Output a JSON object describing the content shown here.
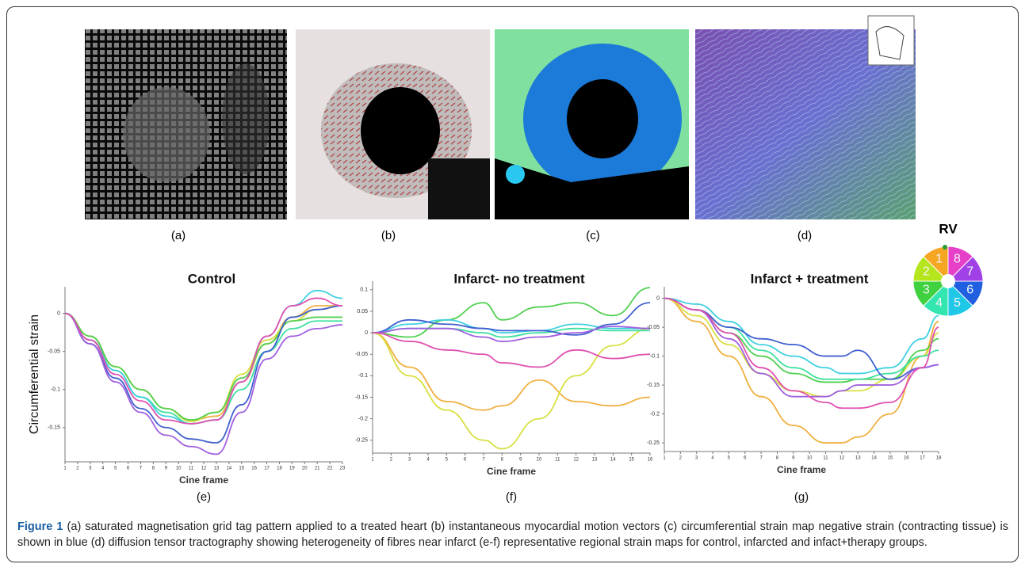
{
  "figure": {
    "panels": [
      "(a)",
      "(b)",
      "(c)",
      "(d)"
    ],
    "segment_legend": {
      "title": "RV",
      "labels": [
        "1",
        "2",
        "3",
        "4",
        "5",
        "6",
        "7",
        "8"
      ],
      "colors": [
        "#f5a623",
        "#b5e61d",
        "#3fd13f",
        "#33e6b0",
        "#1ec8e6",
        "#1f5fe0",
        "#a040e6",
        "#e640c8"
      ]
    },
    "caption": {
      "label": "Figure 1",
      "text": "(a) saturated magnetisation grid tag pattern applied to a treated heart (b) instantaneous myocardial motion vectors (c) circumferential strain map negative strain (contracting tissue) is shown in blue (d) diffusion tensor tractography showing heterogeneity of fibres near infarct (e-f) representative regional strain maps for control, infarcted and infact+therapy groups."
    }
  },
  "chart_data": [
    {
      "type": "line",
      "title": "Control",
      "x_label": "Cine frame",
      "y_label": "Circumferential strain",
      "panel_label": "(e)",
      "x": [
        1,
        3,
        5,
        7,
        9,
        11,
        13,
        15,
        17,
        19,
        21,
        23
      ],
      "xlim": [
        1,
        23
      ],
      "xticks": [
        1,
        2,
        3,
        4,
        5,
        6,
        7,
        8,
        9,
        10,
        11,
        12,
        13,
        14,
        15,
        16,
        17,
        18,
        19,
        20,
        21,
        22,
        23
      ],
      "ylim": [
        -0.195,
        0.035
      ],
      "yticks": [
        0,
        -0.05,
        -0.1,
        -0.15
      ],
      "series": [
        {
          "color": "#f0b040",
          "values": [
            0,
            -0.03,
            -0.07,
            -0.1,
            -0.125,
            -0.14,
            -0.135,
            -0.09,
            -0.04,
            -0.005,
            0.01,
            0.01
          ]
        },
        {
          "color": "#d8e040",
          "values": [
            0,
            -0.03,
            -0.07,
            -0.1,
            -0.125,
            -0.142,
            -0.13,
            -0.08,
            -0.035,
            -0.01,
            0.005,
            0.01
          ]
        },
        {
          "color": "#50d050",
          "values": [
            0,
            -0.03,
            -0.07,
            -0.1,
            -0.125,
            -0.14,
            -0.13,
            -0.085,
            -0.04,
            -0.01,
            -0.005,
            -0.005
          ]
        },
        {
          "color": "#40e0a0",
          "values": [
            0,
            -0.035,
            -0.075,
            -0.11,
            -0.13,
            -0.145,
            -0.14,
            -0.1,
            -0.05,
            -0.02,
            -0.01,
            -0.01
          ]
        },
        {
          "color": "#40d0e0",
          "values": [
            0,
            -0.035,
            -0.075,
            -0.11,
            -0.135,
            -0.145,
            -0.14,
            -0.09,
            -0.03,
            0.01,
            0.03,
            0.02
          ]
        },
        {
          "color": "#4060d0",
          "values": [
            0,
            -0.04,
            -0.085,
            -0.125,
            -0.15,
            -0.165,
            -0.17,
            -0.12,
            -0.05,
            -0.005,
            0.005,
            0.01
          ]
        },
        {
          "color": "#a060e0",
          "values": [
            0,
            -0.04,
            -0.09,
            -0.13,
            -0.16,
            -0.175,
            -0.185,
            -0.13,
            -0.06,
            -0.03,
            -0.02,
            -0.015
          ]
        },
        {
          "color": "#e050b0",
          "values": [
            0,
            -0.035,
            -0.08,
            -0.115,
            -0.14,
            -0.145,
            -0.14,
            -0.09,
            -0.03,
            0.01,
            0.02,
            0.01
          ]
        }
      ]
    },
    {
      "type": "line",
      "title": "Infarct- no treatment",
      "x_label": "Cine frame",
      "panel_label": "(f)",
      "x": [
        1,
        3,
        5,
        7,
        8,
        10,
        12,
        14,
        16
      ],
      "xlim": [
        1,
        16
      ],
      "xticks": [
        1,
        2,
        3,
        4,
        5,
        6,
        7,
        8,
        9,
        10,
        11,
        12,
        13,
        14,
        15,
        16
      ],
      "ylim": [
        -0.28,
        0.12
      ],
      "yticks": [
        0.1,
        0.05,
        0,
        -0.05,
        -0.1,
        -0.15,
        -0.2,
        -0.25
      ],
      "series": [
        {
          "color": "#f0b040",
          "values": [
            0,
            -0.08,
            -0.16,
            -0.18,
            -0.17,
            -0.11,
            -0.16,
            -0.17,
            -0.15
          ]
        },
        {
          "color": "#d8e040",
          "values": [
            0,
            -0.1,
            -0.18,
            -0.25,
            -0.27,
            -0.2,
            -0.1,
            -0.03,
            0.01
          ]
        },
        {
          "color": "#50d050",
          "values": [
            0,
            -0.01,
            0.03,
            0.07,
            0.03,
            0.06,
            0.07,
            0.04,
            0.105
          ]
        },
        {
          "color": "#40e0a0",
          "values": [
            0,
            0.01,
            0.01,
            0,
            -0.01,
            0,
            0.01,
            0.005,
            0.005
          ]
        },
        {
          "color": "#40d0e0",
          "values": [
            0,
            0.02,
            0.03,
            0.01,
            0,
            0.005,
            0.02,
            0.01,
            0.01
          ]
        },
        {
          "color": "#4060d0",
          "values": [
            0,
            0.03,
            0.02,
            0.01,
            0.005,
            0.005,
            -0.005,
            0.02,
            0.07
          ]
        },
        {
          "color": "#a060e0",
          "values": [
            0,
            0.01,
            0.01,
            -0.01,
            -0.02,
            -0.01,
            0,
            0.015,
            0.01
          ]
        },
        {
          "color": "#e050b0",
          "values": [
            0,
            -0.02,
            -0.04,
            -0.05,
            -0.07,
            -0.08,
            -0.04,
            -0.06,
            -0.05
          ]
        }
      ]
    },
    {
      "type": "line",
      "title": "Infarct + treatment",
      "x_label": "Cine frame",
      "panel_label": "(g)",
      "x": [
        1,
        3,
        5,
        7,
        9,
        11,
        12,
        13,
        15,
        17,
        18
      ],
      "xlim": [
        1,
        18
      ],
      "xticks": [
        1,
        2,
        3,
        4,
        5,
        6,
        7,
        8,
        9,
        10,
        11,
        12,
        13,
        14,
        15,
        16,
        17,
        18
      ],
      "ylim": [
        -0.265,
        0.02
      ],
      "yticks": [
        0,
        -0.05,
        -0.1,
        -0.15,
        -0.2,
        -0.25
      ],
      "series": [
        {
          "color": "#f0b040",
          "values": [
            0,
            -0.04,
            -0.1,
            -0.17,
            -0.22,
            -0.25,
            -0.25,
            -0.24,
            -0.2,
            -0.1,
            -0.04
          ]
        },
        {
          "color": "#d8e040",
          "values": [
            0,
            -0.03,
            -0.08,
            -0.13,
            -0.16,
            -0.17,
            -0.16,
            -0.16,
            -0.14,
            -0.1,
            -0.06
          ]
        },
        {
          "color": "#50d050",
          "values": [
            0,
            -0.02,
            -0.06,
            -0.1,
            -0.13,
            -0.145,
            -0.145,
            -0.14,
            -0.14,
            -0.09,
            -0.07
          ]
        },
        {
          "color": "#40e0a0",
          "values": [
            0,
            -0.02,
            -0.05,
            -0.09,
            -0.12,
            -0.14,
            -0.14,
            -0.14,
            -0.13,
            -0.1,
            -0.09
          ]
        },
        {
          "color": "#40d0e0",
          "values": [
            0,
            -0.01,
            -0.04,
            -0.08,
            -0.1,
            -0.12,
            -0.13,
            -0.13,
            -0.12,
            -0.07,
            -0.03
          ]
        },
        {
          "color": "#4060d0",
          "values": [
            0,
            -0.02,
            -0.05,
            -0.07,
            -0.08,
            -0.1,
            -0.1,
            -0.09,
            -0.14,
            -0.12,
            -0.115
          ]
        },
        {
          "color": "#a060e0",
          "values": [
            0,
            -0.02,
            -0.07,
            -0.13,
            -0.17,
            -0.17,
            -0.16,
            -0.15,
            -0.15,
            -0.12,
            -0.115
          ]
        },
        {
          "color": "#e050b0",
          "values": [
            0,
            -0.02,
            -0.06,
            -0.12,
            -0.16,
            -0.18,
            -0.19,
            -0.19,
            -0.18,
            -0.12,
            -0.05
          ]
        }
      ]
    }
  ]
}
